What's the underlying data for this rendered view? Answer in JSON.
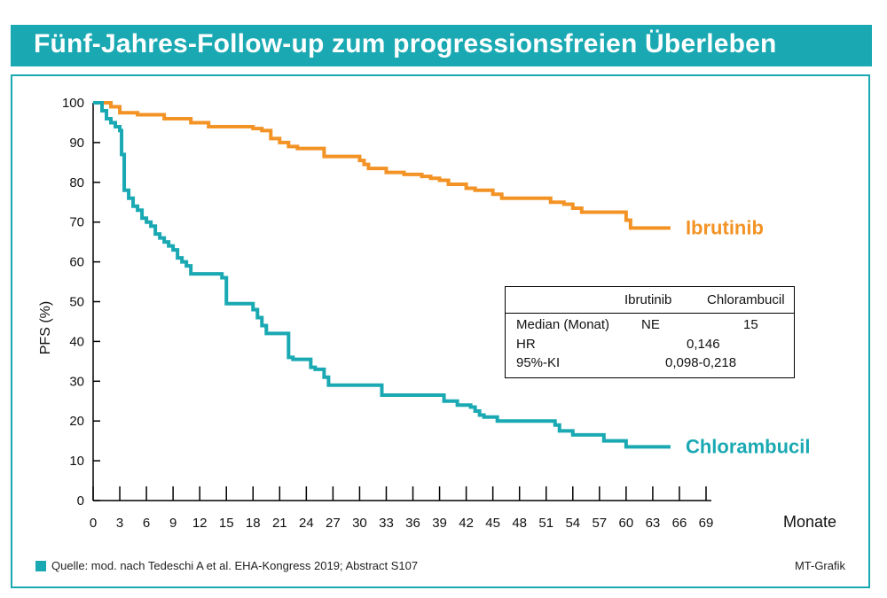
{
  "title": "Fünf-Jahres-Follow-up zum progressionsfreien Überleben",
  "footer": {
    "source": "Quelle: mod. nach Tedeschi A et al. EHA-Kongress 2019; Abstract S107",
    "credit": "MT-Grafik"
  },
  "stats_table": {
    "columns": [
      "Ibrutinib",
      "Chlorambucil"
    ],
    "rows": [
      {
        "label": "Median (Monat)",
        "ibrutinib": "NE",
        "chlorambucil": "15"
      },
      {
        "label": "HR",
        "combined": "0,146"
      },
      {
        "label": "95%-KI",
        "combined": "0,098-0,218"
      }
    ]
  },
  "colors": {
    "ibrutinib": "#f39325",
    "chlorambucil": "#1aa9b3",
    "frame": "#1aa9b3"
  },
  "chart_data": {
    "type": "line",
    "title": "Fünf-Jahres-Follow-up zum progressionsfreien Überleben",
    "xlabel": "Monate",
    "ylabel": "PFS (%)",
    "xlim": [
      0,
      69
    ],
    "ylim": [
      0,
      100
    ],
    "xticks": [
      0,
      3,
      6,
      9,
      12,
      15,
      18,
      21,
      24,
      27,
      30,
      33,
      36,
      39,
      42,
      45,
      48,
      51,
      54,
      57,
      60,
      63,
      66,
      69
    ],
    "yticks": [
      0,
      10,
      20,
      30,
      40,
      50,
      60,
      70,
      80,
      90,
      100
    ],
    "grid": false,
    "step": true,
    "series": [
      {
        "name": "Ibrutinib",
        "color": "#f39325",
        "x": [
          0,
          2,
          3,
          5,
          8,
          10,
          11,
          13,
          16,
          18,
          19,
          20,
          21,
          22,
          23,
          25,
          26,
          29,
          30,
          30.5,
          31,
          33,
          35,
          37,
          38,
          39,
          40,
          41,
          42,
          43,
          45,
          46,
          51,
          51.5,
          52,
          53,
          54,
          55,
          59,
          60,
          60.5,
          65
        ],
        "y": [
          100,
          99,
          97.5,
          97,
          96,
          96,
          95,
          94,
          94,
          93.5,
          93,
          91,
          90,
          89,
          88.5,
          88.5,
          86.5,
          86.5,
          85.5,
          84.5,
          83.5,
          82.5,
          82,
          81.5,
          81,
          80.5,
          79.5,
          79.5,
          78.5,
          78,
          77,
          76,
          76,
          75,
          75,
          74.5,
          73.5,
          72.5,
          72.5,
          70.5,
          68.5,
          68.5
        ]
      },
      {
        "name": "Chlorambucil",
        "color": "#1aa9b3",
        "x": [
          0,
          1,
          1.5,
          2,
          2.5,
          3,
          3.2,
          3.5,
          4,
          4.5,
          5,
          5.5,
          6,
          6.5,
          7,
          7.5,
          8,
          8.5,
          9,
          9.5,
          10,
          10.5,
          11,
          14,
          14.5,
          15,
          17.5,
          18,
          18.5,
          19,
          19.5,
          21.5,
          22,
          22.5,
          24,
          24.5,
          25,
          26,
          26.5,
          32,
          32.5,
          37.5,
          39.5,
          41,
          42.5,
          43,
          43.5,
          44,
          45.5,
          52,
          52.5,
          54,
          57,
          57.5,
          59.5,
          60,
          65
        ],
        "y": [
          100,
          98,
          96,
          95,
          94,
          93,
          87,
          78,
          76,
          74,
          73,
          71,
          70,
          69,
          67,
          66,
          65,
          64,
          63,
          61,
          60,
          59,
          57,
          57,
          56,
          49.5,
          49.5,
          48,
          46,
          44,
          42,
          42,
          36,
          35.5,
          35.5,
          33.5,
          33,
          31,
          29,
          29,
          26.5,
          26.5,
          25,
          24,
          23.5,
          22.5,
          21.5,
          21,
          20,
          19,
          17.5,
          16.5,
          16.5,
          15,
          15,
          13.5,
          13.5
        ]
      }
    ]
  }
}
